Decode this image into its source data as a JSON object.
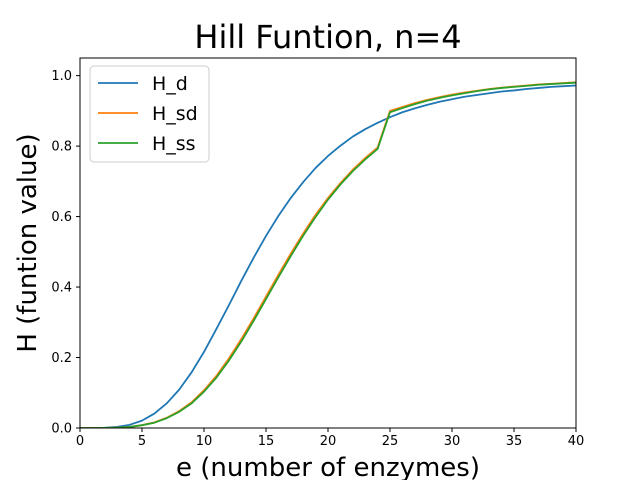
{
  "chart_data": {
    "type": "line",
    "title": "Hill Funtion, n=4",
    "xlabel": "e (number of enzymes)",
    "ylabel": "H (funtion value)",
    "xlim": [
      0,
      40
    ],
    "ylim": [
      0,
      1.05
    ],
    "xticks": [
      0,
      5,
      10,
      15,
      20,
      25,
      30,
      35,
      40
    ],
    "yticks": [
      0.0,
      0.2,
      0.4,
      0.6,
      0.8,
      1.0
    ],
    "xtick_labels": [
      "0",
      "5",
      "10",
      "15",
      "20",
      "25",
      "30",
      "35",
      "40"
    ],
    "ytick_labels": [
      "0.0",
      "0.2",
      "0.4",
      "0.6",
      "0.8",
      "1.0"
    ],
    "grid": false,
    "legend_position": "top-left",
    "x": [
      0,
      1,
      2,
      3,
      4,
      5,
      6,
      7,
      8,
      9,
      10,
      11,
      12,
      13,
      14,
      15,
      16,
      17,
      18,
      19,
      20,
      21,
      22,
      23,
      24,
      25,
      26,
      27,
      28,
      29,
      30,
      31,
      32,
      33,
      34,
      35,
      36,
      37,
      38,
      39,
      40
    ],
    "series": [
      {
        "name": "H_d",
        "color": "#1f77b4",
        "values": [
          0,
          0.0001,
          0.0006,
          0.003,
          0.009,
          0.021,
          0.041,
          0.07,
          0.109,
          0.158,
          0.216,
          0.281,
          0.348,
          0.417,
          0.483,
          0.545,
          0.602,
          0.653,
          0.698,
          0.738,
          0.772,
          0.801,
          0.827,
          0.848,
          0.866,
          0.882,
          0.896,
          0.907,
          0.917,
          0.926,
          0.933,
          0.94,
          0.945,
          0.95,
          0.955,
          0.958,
          0.962,
          0.965,
          0.968,
          0.97,
          0.972
        ]
      },
      {
        "name": "H_sd",
        "color": "#ff7f0e",
        "values": [
          0,
          0,
          0.0002,
          0.001,
          0.003,
          0.008,
          0.016,
          0.029,
          0.048,
          0.073,
          0.107,
          0.148,
          0.197,
          0.252,
          0.311,
          0.373,
          0.435,
          0.495,
          0.552,
          0.605,
          0.653,
          0.695,
          0.733,
          0.766,
          0.796,
          0.9,
          0.911,
          0.922,
          0.931,
          0.939,
          0.946,
          0.952,
          0.957,
          0.962,
          0.966,
          0.969,
          0.972,
          0.975,
          0.977,
          0.979,
          0.981
        ]
      },
      {
        "name": "H_ss",
        "color": "#2ca02c",
        "values": [
          0,
          0,
          0.0002,
          0.001,
          0.003,
          0.008,
          0.015,
          0.028,
          0.046,
          0.07,
          0.103,
          0.143,
          0.191,
          0.245,
          0.304,
          0.366,
          0.428,
          0.488,
          0.546,
          0.599,
          0.648,
          0.691,
          0.729,
          0.762,
          0.792,
          0.896,
          0.908,
          0.919,
          0.929,
          0.937,
          0.944,
          0.95,
          0.956,
          0.961,
          0.965,
          0.968,
          0.971,
          0.974,
          0.976,
          0.978,
          0.98
        ]
      }
    ]
  }
}
